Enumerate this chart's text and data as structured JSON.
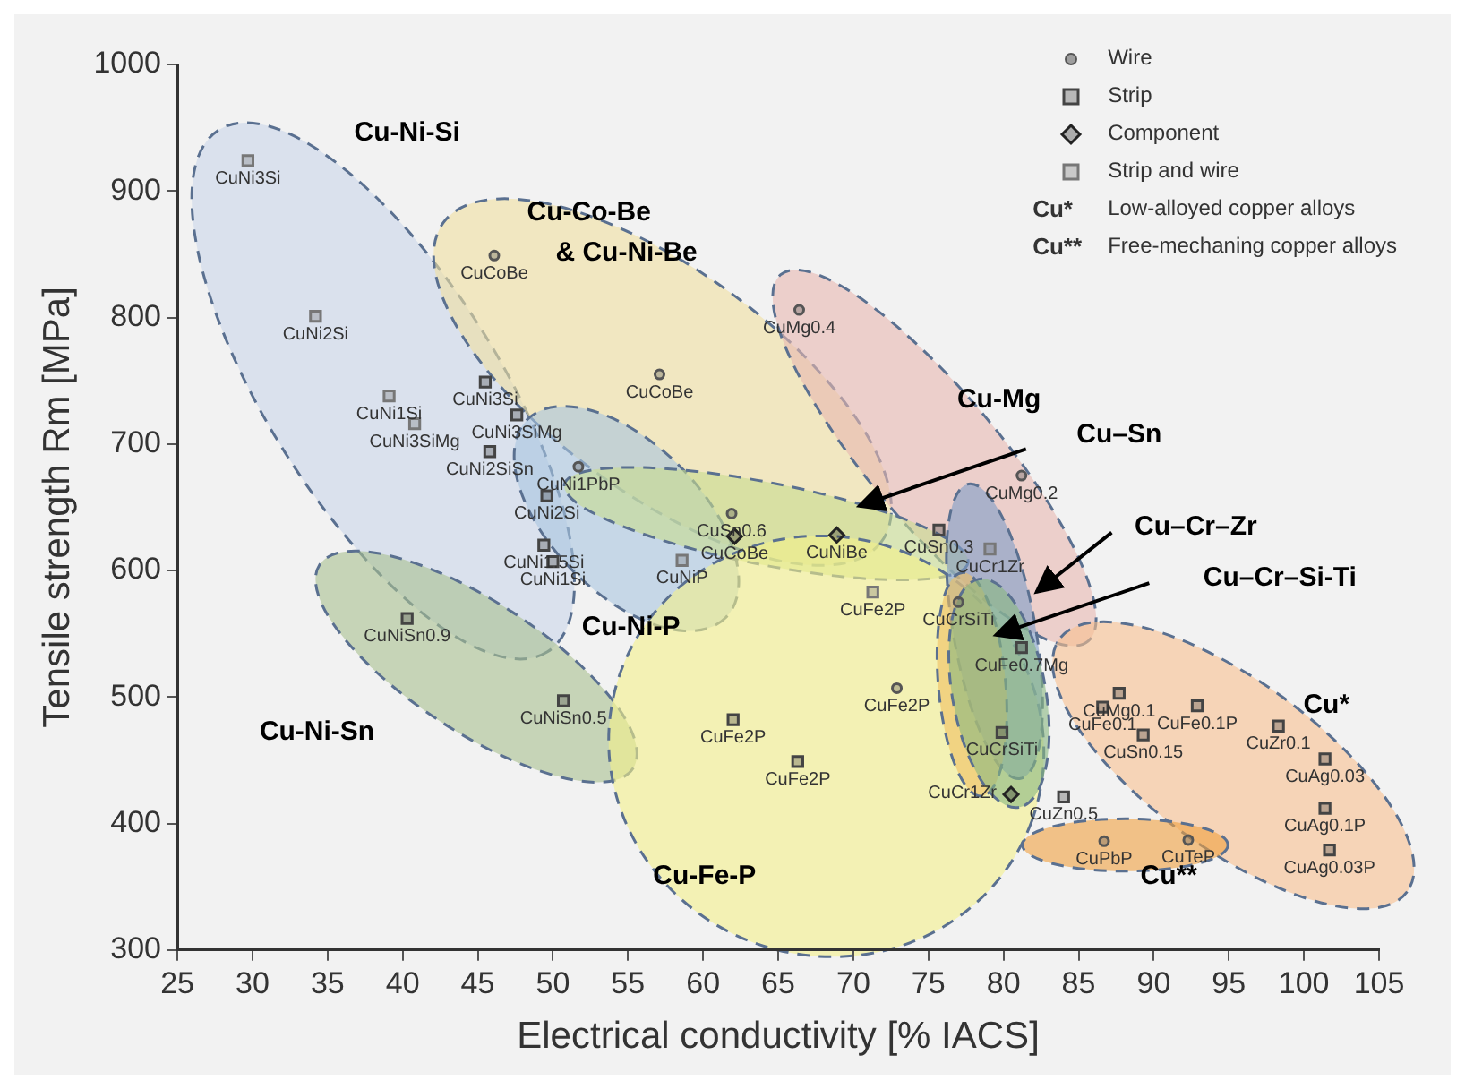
{
  "chart_data": {
    "type": "scatter",
    "xlabel": "Electrical conductivity [% IACS]",
    "ylabel": "Tensile strength Rm [MPa]",
    "xlim": [
      25,
      105
    ],
    "xticks": [
      25,
      30,
      35,
      40,
      45,
      50,
      55,
      60,
      65,
      70,
      75,
      80,
      85,
      90,
      95,
      100,
      105
    ],
    "ylim": [
      300,
      1000
    ],
    "yticks": [
      300,
      400,
      500,
      600,
      700,
      800,
      900,
      1000
    ],
    "legend": "top right",
    "series": [
      {
        "name": "Wire",
        "marker": "circle",
        "color": "#555555",
        "x": [
          46.1,
          57.1,
          66.4,
          51.7,
          61.9,
          81.2,
          72.9,
          77,
          86.7,
          92.3
        ],
        "values": [
          849,
          755,
          806,
          682,
          645,
          675,
          507,
          575,
          386,
          387
        ],
        "value_labels": [
          "CuCoBe",
          "CuCoBe",
          "CuMg0.4",
          "CuNi1PbP",
          "CuSn0.6",
          "CuMg0.2",
          "CuFe2P",
          "CuCrSiTi",
          "CuPbP",
          "CuTeP"
        ]
      },
      {
        "name": "Strip",
        "marker": "square",
        "color": "#444444",
        "x": [
          45.5,
          47.6,
          45.8,
          49.6,
          49.4,
          50,
          40.3,
          50.7,
          62,
          66.3,
          79.9,
          81.2,
          84,
          87.7,
          86.6,
          89.3,
          92.9,
          98.3,
          101.4,
          101.4,
          101.7,
          75.7
        ],
        "values": [
          749,
          723,
          694,
          659,
          620,
          607,
          562,
          497,
          482,
          449,
          472,
          539,
          421,
          503,
          492,
          470,
          493,
          477,
          451,
          412,
          379,
          632
        ],
        "value_labels": [
          "CuNi3Si",
          "CuNi3SiMg",
          "CuNi2SiSn",
          "CuNi2Si",
          "CuNi1.5Si",
          "CuNi1Si",
          "CuNiSn0.9",
          "CuNiSn0.5",
          "CuFe2P",
          "CuFe2P",
          "CuCrSiTi",
          "CuFe0.7Mg",
          "CuZn0.5",
          "CuMg0.1",
          "CuFe0.1",
          "CuSn0.15",
          "CuFe0.1P",
          "CuZr0.1",
          "CuAg0.03",
          "CuAg0.1P",
          "CuAg0.03P",
          "CuSn0.3"
        ]
      },
      {
        "name": "Component",
        "marker": "diamond",
        "color": "#222222",
        "x": [
          62.1,
          68.9,
          80.5
        ],
        "values": [
          627,
          628,
          423
        ],
        "value_labels": [
          "CuCoBe",
          "CuNiBe",
          "CuCr1Zr"
        ]
      },
      {
        "name": "Strip and wire",
        "marker": "square",
        "color": "#777777",
        "x": [
          29.7,
          34.2,
          39.1,
          40.8,
          58.6,
          71.3,
          79.1
        ],
        "values": [
          924,
          801,
          738,
          716,
          608,
          583,
          617
        ],
        "value_labels": [
          "CuNi3Si",
          "CuNi2Si",
          "CuNi1Si",
          "CuNi3SiMg",
          "CuNiP",
          "CuFe2P",
          "CuCr1Zr"
        ]
      }
    ],
    "annotations": [
      "Cu*",
      "Low-alloyed copper alloys",
      "Cu**",
      "Free-mechaning copper alloys",
      "Cu-Ni-Si",
      "Cu-Co-Be",
      "& Cu-Ni-Be",
      "Cu-Mg",
      "Cu–Sn",
      "Cu–Cr–Zr",
      "Cu–Cr–Si-Ti",
      "Cu-Ni-P",
      "Cu-Ni-Sn",
      "Cu-Fe-P",
      "Cu*",
      "Cu**"
    ]
  }
}
